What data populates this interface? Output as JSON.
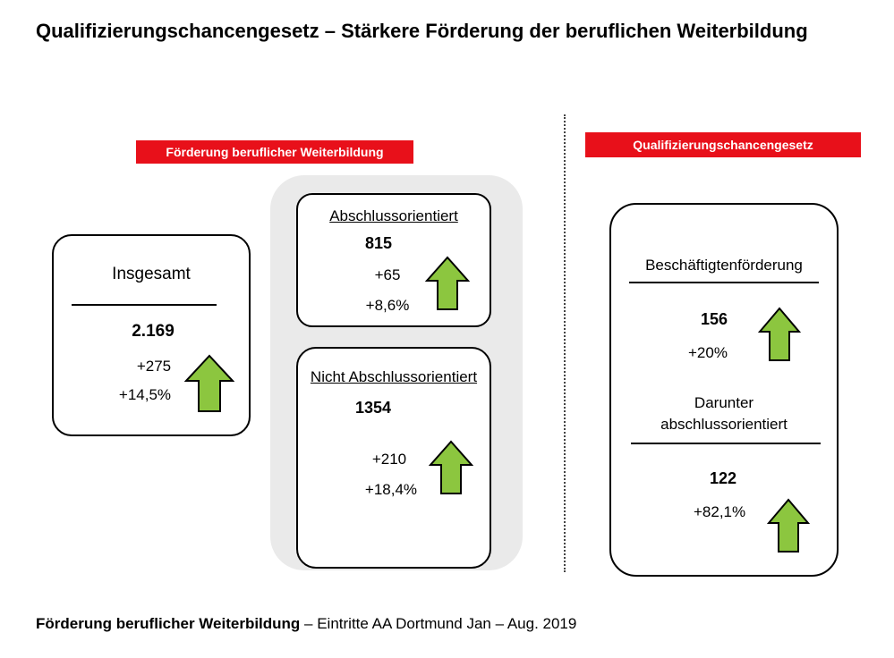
{
  "title": "Qualifizierungschancengesetz – Stärkere Förderung der beruflichen Weiterbildung",
  "left_banner": "Förderung beruflicher Weiterbildung",
  "right_banner": "Qualifizierungschancengesetz",
  "insgesamt": {
    "label": "Insgesamt",
    "value": "2.169",
    "delta_abs": "+275",
    "delta_pct": "+14,5%",
    "trend": "up"
  },
  "abschluss": {
    "label": "Abschlussorientiert",
    "value": "815",
    "delta_abs": "+65",
    "delta_pct": "+8,6%",
    "trend": "up"
  },
  "nicht_abschluss": {
    "label": "Nicht Abschlussorientiert",
    "value": "1354",
    "delta_abs": "+210",
    "delta_pct": "+18,4%",
    "trend": "up"
  },
  "beschaeftigten": {
    "label": "Beschäftigtenförderung",
    "value": "156",
    "delta_pct": "+20%",
    "trend": "up"
  },
  "darunter": {
    "label_line1": "Darunter",
    "label_line2": "abschlussorientiert",
    "value": "122",
    "delta_pct": "+82,1%",
    "trend": "up"
  },
  "footer": {
    "bold": "Förderung beruflicher Weiterbildung",
    "rest": " – Eintritte AA Dortmund Jan – Aug. 2019"
  },
  "colors": {
    "banner": "#e8101a",
    "arrow_fill": "#8cc63f",
    "panel": "#eaeaea"
  }
}
